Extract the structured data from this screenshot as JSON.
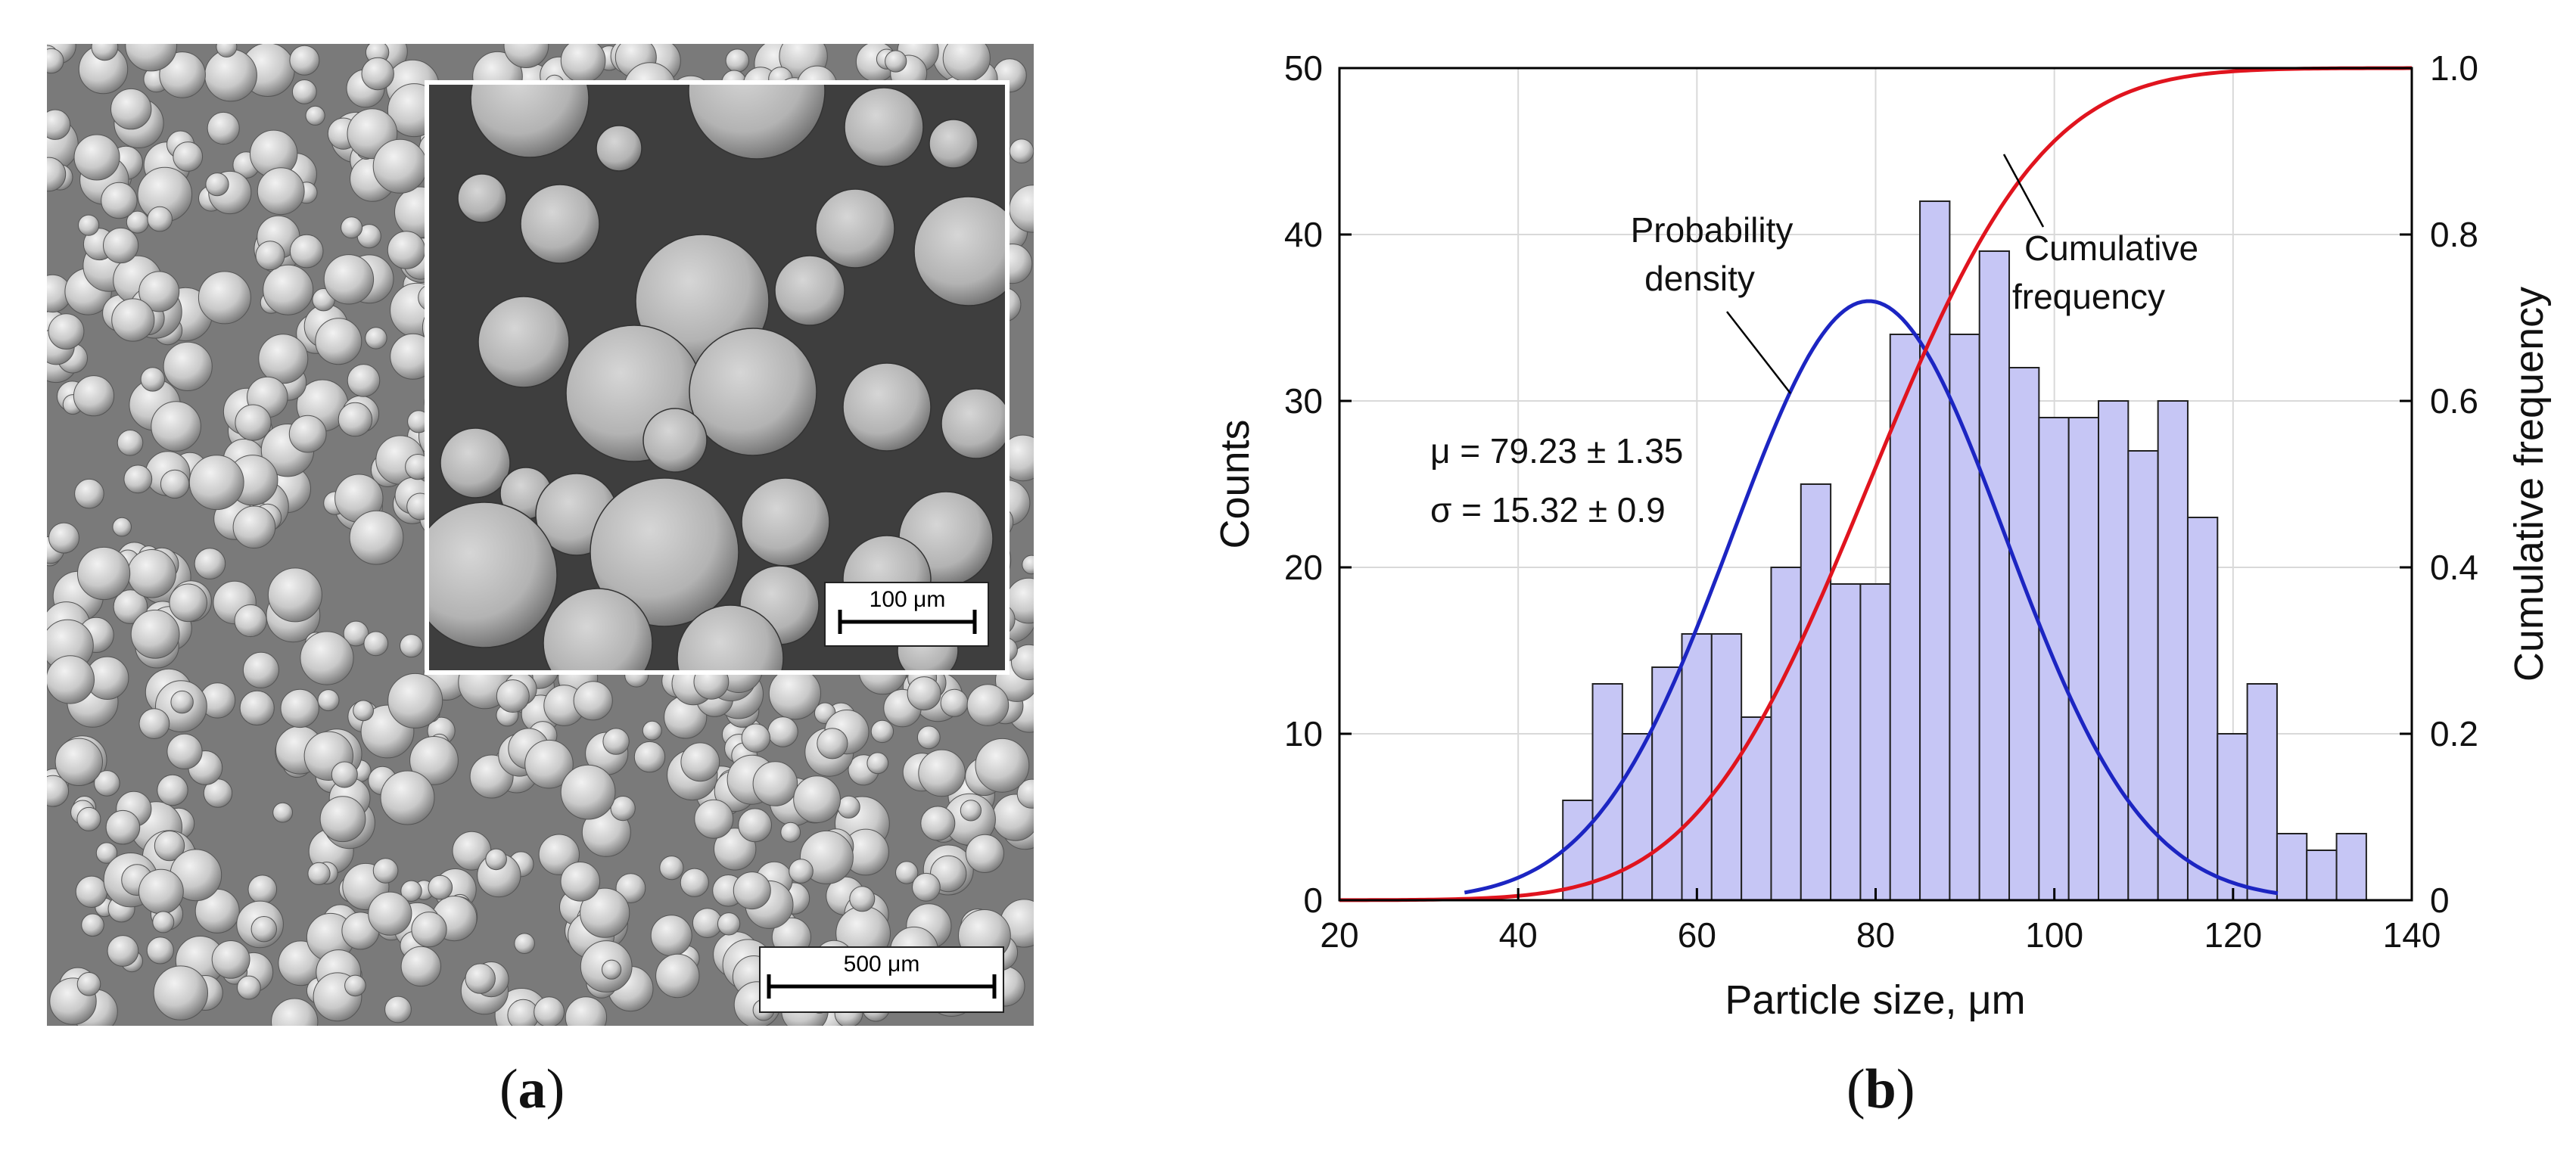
{
  "panels": {
    "a_label": "a",
    "b_label": "b"
  },
  "micrograph": {
    "main_scale_bar": "500 μm",
    "inset_scale_bar": "100 μm"
  },
  "chart_data": {
    "type": "bar",
    "title": "",
    "xlabel": "Particle size, μm",
    "ylabel": "Counts",
    "y2label": "Cumulative frequency",
    "xlim": [
      20,
      140
    ],
    "ylim": [
      0,
      50
    ],
    "y2lim": [
      0,
      1.0
    ],
    "xticks": [
      "20",
      "40",
      "60",
      "80",
      "100",
      "120",
      "140"
    ],
    "yticks": [
      "0",
      "10",
      "20",
      "30",
      "40",
      "50"
    ],
    "y2ticks": [
      "0",
      "0.2",
      "0.4",
      "0.6",
      "0.8",
      "1.0"
    ],
    "grid": true,
    "bin_width": 3.33,
    "bin_start": 45,
    "counts": [
      6,
      13,
      10,
      14,
      16,
      16,
      11,
      20,
      25,
      19,
      19,
      34,
      42,
      34,
      39,
      32,
      29,
      29,
      30,
      27,
      30,
      23,
      10,
      13,
      4,
      3,
      4
    ],
    "series": [
      {
        "name": "Probability density",
        "kind": "normal_pdf",
        "mu": 79.23,
        "sigma": 15.32,
        "peak": 36,
        "x_range": [
          34,
          125
        ],
        "color": "#1c25c2"
      },
      {
        "name": "Cumulative frequency",
        "kind": "normal_cdf",
        "mu": 79.23,
        "sigma": 15.32,
        "x_range": [
          20,
          140
        ],
        "color": "#e0141e"
      }
    ],
    "annotations": {
      "pdf_label_line1": "Probability",
      "pdf_label_line2": "density",
      "cdf_label_line1": "Cumulative",
      "cdf_label_line2": "frequency",
      "mu_text": "μ = 79.23 ± 1.35",
      "sigma_text": "σ = 15.32 ± 0.9"
    },
    "bar_fill": "#c6c6f5",
    "bar_stroke": "#222222"
  }
}
